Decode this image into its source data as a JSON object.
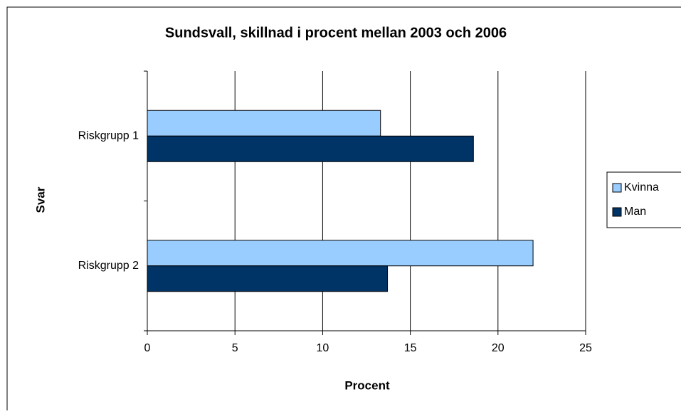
{
  "chart_data": {
    "type": "barh",
    "title": "Sundsvall, skillnad i procent mellan 2003 och 2006",
    "xlabel": "Procent",
    "ylabel": "Svar",
    "categories": [
      "Riskgrupp 1",
      "Riskgrupp 2"
    ],
    "series": [
      {
        "name": "Kvinna",
        "color": "#99ccff",
        "values": [
          13.3,
          22.0
        ]
      },
      {
        "name": "Man",
        "color": "#003366",
        "values": [
          18.6,
          13.7
        ]
      }
    ],
    "xlim": [
      0,
      25
    ],
    "xticks": [
      0,
      5,
      10,
      15,
      20,
      25
    ],
    "grid": true,
    "legend": "right"
  }
}
